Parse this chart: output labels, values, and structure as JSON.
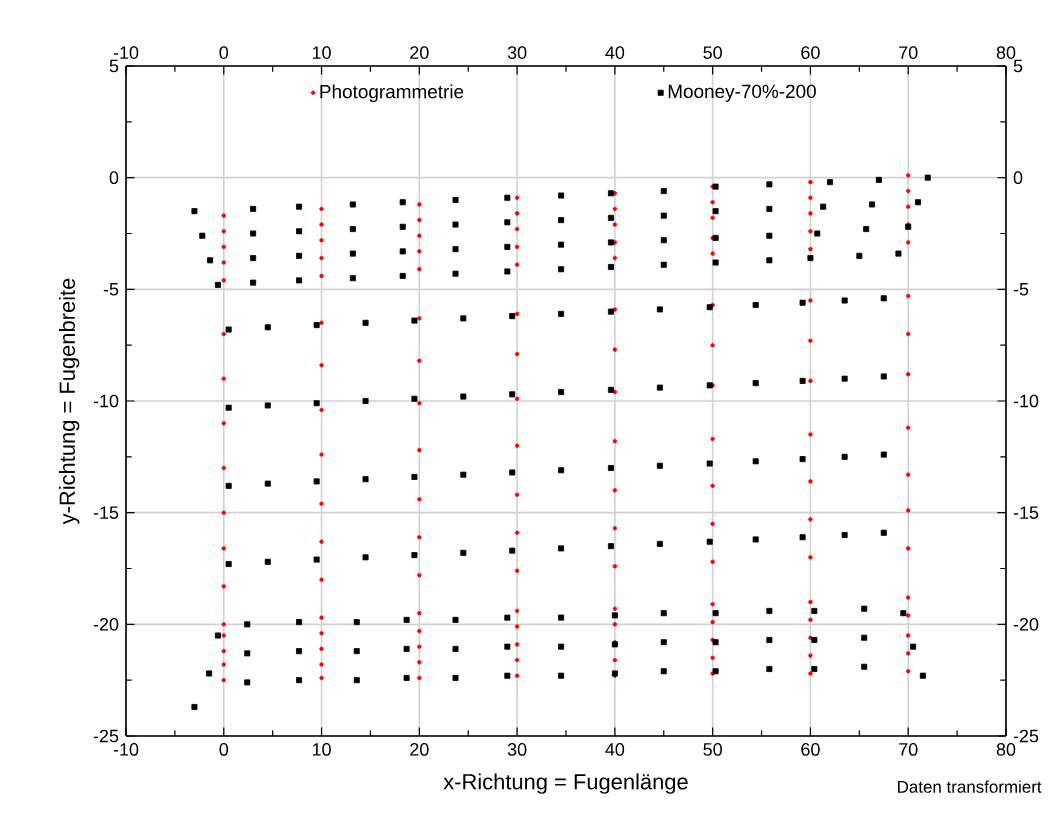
{
  "chart_data": {
    "type": "scatter",
    "xlabel": "x-Richtung = Fugenlänge",
    "ylabel": "y-Richtung = Fugenbreite",
    "annotations": [
      "Daten transformiert"
    ],
    "xlim": [
      -10,
      80
    ],
    "xticks": [
      -10,
      0,
      10,
      20,
      30,
      40,
      50,
      60,
      70,
      80
    ],
    "ylim": [
      -25,
      5
    ],
    "yticks": [
      -25,
      -20,
      -15,
      -10,
      -5,
      0,
      5
    ],
    "x2lim": [
      -10,
      80
    ],
    "x2ticks": [
      -10,
      0,
      10,
      20,
      30,
      40,
      50,
      60,
      70,
      80
    ],
    "y2lim": [
      -25,
      5
    ],
    "y2ticks": [
      -25,
      -20,
      -15,
      -10,
      -5,
      0,
      5
    ],
    "grid": true,
    "legend": "top",
    "series": [
      {
        "name": "Photogrammetrie",
        "color": "#ff0000",
        "marker": "circle",
        "x": [
          0,
          10,
          20,
          30,
          40,
          50,
          60,
          70,
          0,
          10,
          20,
          30,
          40,
          50,
          60,
          70,
          0,
          10,
          20,
          30,
          40,
          50,
          60,
          70,
          0,
          10,
          20,
          30,
          40,
          50,
          60,
          70,
          0,
          10,
          20,
          30,
          40,
          50,
          60,
          70,
          0,
          10,
          20,
          30,
          40,
          50,
          60,
          70,
          0,
          10,
          20,
          30,
          40,
          50,
          60,
          70,
          0,
          10,
          20,
          30,
          40,
          50,
          60,
          70,
          0,
          10,
          20,
          30,
          40,
          50,
          60,
          70,
          0,
          10,
          20,
          30,
          40,
          50,
          60,
          70,
          0,
          10,
          20,
          30,
          40,
          50,
          60,
          70,
          0,
          10,
          20,
          30,
          40,
          50,
          60,
          70,
          0,
          10,
          20,
          30,
          40,
          50,
          60,
          70,
          0,
          10,
          20,
          30,
          40,
          50,
          60,
          70,
          0,
          10,
          20,
          30,
          40,
          50,
          60,
          70,
          0,
          10,
          20,
          30,
          40,
          50,
          60,
          70,
          0,
          10,
          20,
          30,
          40,
          50,
          60,
          70
        ],
        "values": [
          -1.7,
          -1.4,
          -1.2,
          -0.9,
          -0.7,
          -0.4,
          -0.2,
          0.1,
          -2.4,
          -2.1,
          -1.9,
          -1.6,
          -1.4,
          -1.1,
          -0.9,
          -0.6,
          -3.1,
          -2.8,
          -2.6,
          -2.3,
          -2.1,
          -1.8,
          -1.6,
          -1.3,
          -3.8,
          -3.6,
          -3.3,
          -3.1,
          -2.9,
          -2.7,
          -2.4,
          -2.1,
          -4.6,
          -4.4,
          -4.1,
          -3.9,
          -3.6,
          -3.4,
          -3.2,
          -2.9,
          -7.0,
          -6.5,
          -6.3,
          -6.1,
          -5.9,
          -5.7,
          -5.5,
          -5.3,
          -9.0,
          -8.4,
          -8.2,
          -7.9,
          -7.7,
          -7.5,
          -7.3,
          -7.0,
          -11.0,
          -10.4,
          -10.1,
          -9.9,
          -9.6,
          -9.3,
          -9.1,
          -8.8,
          -13.0,
          -12.4,
          -12.2,
          -12.0,
          -11.8,
          -11.7,
          -11.5,
          -11.2,
          -15.0,
          -14.6,
          -14.4,
          -14.2,
          -14.0,
          -13.8,
          -13.6,
          -13.3,
          -16.6,
          -16.3,
          -16.1,
          -15.9,
          -15.7,
          -15.5,
          -15.3,
          -14.9,
          -18.3,
          -18.0,
          -17.8,
          -17.6,
          -17.4,
          -17.2,
          -17.0,
          -16.6,
          -20.0,
          -19.7,
          -19.5,
          -19.4,
          -19.3,
          -19.1,
          -19.0,
          -18.8,
          -20.5,
          -20.4,
          -20.3,
          -20.1,
          -20.0,
          -19.9,
          -19.8,
          -19.6,
          -21.2,
          -21.1,
          -21.0,
          -20.9,
          -20.8,
          -20.7,
          -20.6,
          -20.5,
          -21.8,
          -21.8,
          -21.7,
          -21.6,
          -21.6,
          -21.5,
          -21.4,
          -21.3,
          -22.5,
          -22.4,
          -22.4,
          -22.3,
          -22.3,
          -22.2,
          -22.2,
          -22.1
        ]
      },
      {
        "name": "Mooney-70%-200",
        "color": "#000000",
        "marker": "square",
        "x": [
          -3.0,
          -2.2,
          -1.4,
          -0.6,
          3,
          3,
          3,
          3,
          7.7,
          7.7,
          7.7,
          7.7,
          13.2,
          13.2,
          13.2,
          13.2,
          18.3,
          18.3,
          18.3,
          18.3,
          23.7,
          23.7,
          23.7,
          23.7,
          29,
          29,
          29,
          29,
          34.5,
          34.5,
          34.5,
          34.5,
          39.6,
          39.6,
          39.6,
          39.6,
          45,
          45,
          45,
          45,
          50.3,
          50.3,
          50.3,
          50.3,
          55.8,
          55.8,
          55.8,
          55.8,
          62,
          61.3,
          60.7,
          60,
          67,
          66.3,
          65.7,
          65,
          72,
          71,
          70,
          69,
          0.5,
          0.5,
          0.5,
          0.5,
          4.5,
          4.5,
          4.5,
          4.5,
          9.5,
          9.5,
          9.5,
          9.5,
          14.5,
          14.5,
          14.5,
          14.5,
          19.5,
          19.5,
          19.5,
          19.5,
          24.5,
          24.5,
          24.5,
          24.5,
          29.5,
          29.5,
          29.5,
          29.5,
          34.5,
          34.5,
          34.5,
          34.5,
          39.6,
          39.6,
          39.6,
          39.6,
          44.6,
          44.6,
          44.6,
          44.6,
          49.7,
          49.7,
          49.7,
          49.7,
          54.4,
          54.4,
          54.4,
          54.4,
          59.2,
          59.2,
          59.2,
          59.2,
          63.5,
          63.5,
          63.5,
          63.5,
          67.5,
          67.5,
          67.5,
          67.5,
          -3,
          -1.5,
          -0.6,
          2.4,
          2.4,
          2.4,
          7.7,
          7.7,
          7.7,
          13.6,
          13.6,
          13.6,
          18.7,
          18.7,
          18.7,
          23.7,
          23.7,
          23.7,
          29,
          29,
          29,
          34.5,
          34.5,
          34.5,
          40,
          40,
          40,
          45,
          45,
          45,
          50.3,
          50.3,
          50.3,
          55.8,
          55.8,
          55.8,
          60.4,
          60.4,
          60.4,
          65.5,
          65.5,
          65.5,
          71.5,
          70.5,
          69.5
        ],
        "values": [
          -1.5,
          -2.6,
          -3.7,
          -4.8,
          -1.4,
          -2.5,
          -3.6,
          -4.7,
          -1.3,
          -2.4,
          -3.5,
          -4.6,
          -1.2,
          -2.3,
          -3.4,
          -4.5,
          -1.1,
          -2.2,
          -3.3,
          -4.4,
          -1.0,
          -2.1,
          -3.2,
          -4.3,
          -0.9,
          -2.0,
          -3.1,
          -4.2,
          -0.8,
          -1.9,
          -3.0,
          -4.1,
          -0.7,
          -1.8,
          -2.9,
          -4.0,
          -0.6,
          -1.7,
          -2.8,
          -3.9,
          -0.4,
          -1.5,
          -2.7,
          -3.8,
          -0.3,
          -1.4,
          -2.6,
          -3.7,
          -0.2,
          -1.3,
          -2.5,
          -3.6,
          -0.1,
          -1.2,
          -2.3,
          -3.5,
          0.0,
          -1.1,
          -2.2,
          -3.4,
          -6.8,
          -10.3,
          -13.8,
          -17.3,
          -6.7,
          -10.2,
          -13.7,
          -17.2,
          -6.6,
          -10.1,
          -13.6,
          -17.1,
          -6.5,
          -10.0,
          -13.5,
          -17.0,
          -6.4,
          -9.9,
          -13.4,
          -16.9,
          -6.3,
          -9.8,
          -13.3,
          -16.8,
          -6.2,
          -9.7,
          -13.2,
          -16.7,
          -6.1,
          -9.6,
          -13.1,
          -16.6,
          -6.0,
          -9.5,
          -13.0,
          -16.5,
          -5.9,
          -9.4,
          -12.9,
          -16.4,
          -5.8,
          -9.3,
          -12.8,
          -16.3,
          -5.7,
          -9.2,
          -12.7,
          -16.2,
          -5.6,
          -9.1,
          -12.6,
          -16.1,
          -5.5,
          -9.0,
          -12.5,
          -16.0,
          -5.4,
          -8.9,
          -12.4,
          -15.9,
          -23.7,
          -22.2,
          -20.5,
          -20.0,
          -21.3,
          -22.6,
          -19.9,
          -21.2,
          -22.5,
          -19.9,
          -21.2,
          -22.5,
          -19.8,
          -21.1,
          -22.4,
          -19.8,
          -21.1,
          -22.4,
          -19.7,
          -21.0,
          -22.3,
          -19.7,
          -21.0,
          -22.3,
          -19.6,
          -20.9,
          -22.2,
          -19.5,
          -20.8,
          -22.1,
          -19.5,
          -20.8,
          -22.1,
          -19.4,
          -20.7,
          -22.0,
          -19.4,
          -20.7,
          -22.0,
          -19.3,
          -20.6,
          -21.9,
          -22.3,
          -21.0,
          -19.5
        ]
      }
    ]
  }
}
